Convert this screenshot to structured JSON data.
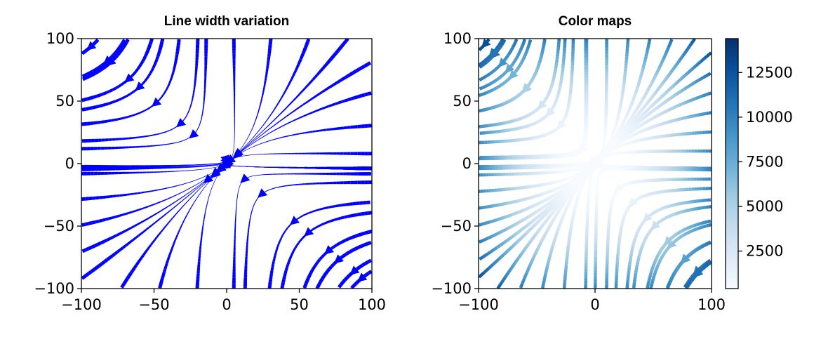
{
  "chart_data": [
    {
      "type": "streamplot",
      "title": "Line width variation",
      "xlim": [
        -100,
        100
      ],
      "ylim": [
        -100,
        100
      ],
      "xticks": [
        -100,
        -50,
        0,
        50,
        100
      ],
      "yticks": [
        -100,
        -50,
        0,
        50,
        100
      ],
      "xtick_labels": [
        "−100",
        "−50",
        "0",
        "50",
        "100"
      ],
      "ytick_labels": [
        "−100",
        "−50",
        "0",
        "50",
        "100"
      ],
      "line_color": "#0000ff",
      "linewidth_encoding": "speed",
      "seed_points": [
        [
          -95,
          92
        ],
        [
          -95,
          72
        ],
        [
          -95,
          52
        ],
        [
          -95,
          32
        ],
        [
          -95,
          12
        ],
        [
          -95,
          -8
        ],
        [
          -95,
          -28
        ],
        [
          -95,
          -48
        ],
        [
          -95,
          -68
        ],
        [
          -95,
          -88
        ],
        [
          -70,
          95
        ],
        [
          -45,
          95
        ],
        [
          -20,
          95
        ],
        [
          5,
          95
        ],
        [
          30,
          95
        ],
        [
          55,
          95
        ],
        [
          80,
          95
        ],
        [
          95,
          78
        ],
        [
          95,
          55
        ],
        [
          95,
          30
        ],
        [
          95,
          8
        ],
        [
          95,
          -15
        ],
        [
          95,
          -40
        ],
        [
          95,
          -65
        ],
        [
          95,
          -90
        ],
        [
          -70,
          -95
        ],
        [
          -45,
          -95
        ],
        [
          -20,
          -95
        ],
        [
          5,
          -95
        ],
        [
          30,
          -95
        ],
        [
          55,
          -95
        ],
        [
          80,
          -95
        ]
      ]
    },
    {
      "type": "streamplot",
      "title": "Color maps",
      "xlim": [
        -100,
        100
      ],
      "ylim": [
        -100,
        100
      ],
      "xticks": [
        -100,
        0,
        100
      ],
      "yticks": [
        -100,
        -50,
        0,
        50,
        100
      ],
      "xtick_labels": [
        "−100",
        "0",
        "100"
      ],
      "ytick_labels": [
        "−100",
        "−50",
        "0",
        "50",
        "100"
      ],
      "colormap": "Blues",
      "colormap_stops": [
        "#f7fbff",
        "#deebf7",
        "#c6dbef",
        "#9ecae1",
        "#6baed6",
        "#4292c6",
        "#2171b5",
        "#08519c",
        "#08306b"
      ],
      "color_encoding": "speed",
      "colorbar": {
        "range": [
          400,
          14400
        ],
        "ticks": [
          2500,
          5000,
          7500,
          10000,
          12500
        ],
        "tick_labels": [
          "2500",
          "5000",
          "7500",
          "10000",
          "12500"
        ]
      },
      "seed_points": [
        [
          -95,
          95
        ],
        [
          -95,
          82
        ],
        [
          -95,
          69
        ],
        [
          -95,
          56
        ],
        [
          -95,
          43
        ],
        [
          -95,
          30
        ],
        [
          -95,
          17
        ],
        [
          -95,
          4
        ],
        [
          -95,
          -9
        ],
        [
          -95,
          -22
        ],
        [
          -95,
          -35
        ],
        [
          -95,
          -48
        ],
        [
          -95,
          -61
        ],
        [
          -95,
          -74
        ],
        [
          -95,
          -87
        ],
        [
          -80,
          95
        ],
        [
          -62,
          95
        ],
        [
          -44,
          95
        ],
        [
          -26,
          95
        ],
        [
          -8,
          95
        ],
        [
          10,
          95
        ],
        [
          28,
          95
        ],
        [
          46,
          95
        ],
        [
          64,
          95
        ],
        [
          82,
          95
        ],
        [
          95,
          85
        ],
        [
          95,
          70
        ],
        [
          95,
          55
        ],
        [
          95,
          40
        ],
        [
          95,
          25
        ],
        [
          95,
          10
        ],
        [
          95,
          -5
        ],
        [
          95,
          -20
        ],
        [
          95,
          -35
        ],
        [
          95,
          -50
        ],
        [
          95,
          -65
        ],
        [
          95,
          -80
        ],
        [
          -80,
          -95
        ],
        [
          -62,
          -95
        ],
        [
          -44,
          -95
        ],
        [
          -26,
          -95
        ],
        [
          -8,
          -95
        ],
        [
          10,
          -95
        ],
        [
          28,
          -95
        ],
        [
          46,
          -95
        ],
        [
          64,
          -95
        ],
        [
          82,
          -95
        ]
      ]
    }
  ]
}
